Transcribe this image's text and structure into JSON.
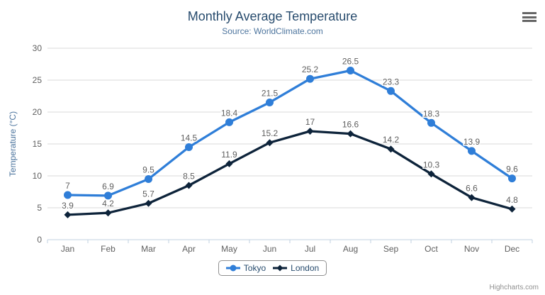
{
  "chart_data": {
    "type": "line",
    "title": "Monthly Average Temperature",
    "subtitle": "Source: WorldClimate.com",
    "categories": [
      "Jan",
      "Feb",
      "Mar",
      "Apr",
      "May",
      "Jun",
      "Jul",
      "Aug",
      "Sep",
      "Oct",
      "Nov",
      "Dec"
    ],
    "series": [
      {
        "name": "Tokyo",
        "color": "#2f7ed8",
        "marker": "circle",
        "values": [
          7,
          6.9,
          9.5,
          14.5,
          18.4,
          21.5,
          25.2,
          26.5,
          23.3,
          18.3,
          13.9,
          9.6
        ]
      },
      {
        "name": "London",
        "color": "#0d233a",
        "marker": "diamond",
        "values": [
          3.9,
          4.2,
          5.7,
          8.5,
          11.9,
          15.2,
          17,
          16.6,
          14.2,
          10.3,
          6.6,
          4.8
        ]
      }
    ],
    "xlabel": "",
    "ylabel": "Temperature (°C)",
    "ylim": [
      0,
      30
    ],
    "yticks": [
      0,
      5,
      10,
      15,
      20,
      25,
      30
    ],
    "grid": true,
    "data_labels": true,
    "legend_position": "bottom"
  },
  "credits": {
    "label": "Highcharts.com"
  },
  "menu": {
    "icon": "hamburger-menu-icon"
  },
  "colors": {
    "title_text": "#274b6d",
    "subtitle_text": "#4d759e",
    "axis_title_text": "#4d759e",
    "tick_label_text": "#606060",
    "data_label_text": "#606060",
    "grid_line": "#d8d8d8",
    "axis_line": "#c0d0e0",
    "legend_border": "#909090",
    "legend_text": "#274b6d",
    "credits_text": "#909090",
    "menu_icon": "#666666"
  }
}
